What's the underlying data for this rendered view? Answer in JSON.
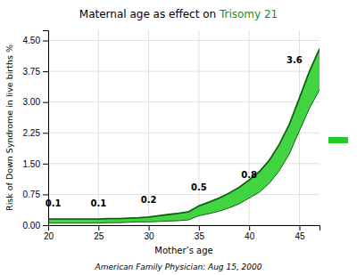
{
  "chart_data": {
    "type": "area",
    "title": [
      "Maternal age as effect on ",
      "Trisomy 21"
    ],
    "x_label": "Mother’s age",
    "y_label": "Risk of Down Syndrome in live births %",
    "source": "American Family Physician: Aug 15, 2000",
    "x": [
      20,
      21,
      22,
      23,
      24,
      25,
      26,
      27,
      28,
      29,
      30,
      31,
      32,
      33,
      34,
      35,
      36,
      37,
      38,
      39,
      40,
      41,
      42,
      43,
      44,
      45,
      46,
      47
    ],
    "series": [
      {
        "color": "#22cc22",
        "low": [
          0.05,
          0.05,
          0.05,
          0.05,
          0.05,
          0.05,
          0.06,
          0.06,
          0.07,
          0.08,
          0.08,
          0.09,
          0.1,
          0.11,
          0.13,
          0.23,
          0.28,
          0.34,
          0.42,
          0.52,
          0.66,
          0.8,
          1.02,
          1.33,
          1.74,
          2.3,
          2.85,
          3.3
        ],
        "high": [
          0.15,
          0.15,
          0.15,
          0.15,
          0.15,
          0.15,
          0.16,
          0.16,
          0.17,
          0.18,
          0.2,
          0.23,
          0.26,
          0.29,
          0.33,
          0.47,
          0.56,
          0.66,
          0.78,
          0.92,
          1.1,
          1.3,
          1.58,
          1.97,
          2.46,
          3.1,
          3.75,
          4.3
        ]
      }
    ],
    "annotations": [
      {
        "x": 20.5,
        "value": 0.1
      },
      {
        "x": 25,
        "value": 0.1
      },
      {
        "x": 30,
        "value": 0.2
      },
      {
        "x": 35,
        "value": 0.5
      },
      {
        "x": 40,
        "value": 0.8
      },
      {
        "x": 44.5,
        "value": 3.6
      }
    ],
    "xlim": [
      20,
      47
    ],
    "xticks": [
      20,
      25,
      30,
      35,
      40,
      45
    ],
    "ylim": [
      0,
      4.75
    ],
    "yticks": [
      {
        "value": 0,
        "label": "0.00"
      },
      0.75,
      {
        "value": 1.5,
        "label": "1.50"
      },
      2.25,
      {
        "value": 3.0,
        "label": "3.00"
      },
      3.75,
      {
        "value": 4.5,
        "label": "4.50"
      }
    ],
    "grid": true
  }
}
